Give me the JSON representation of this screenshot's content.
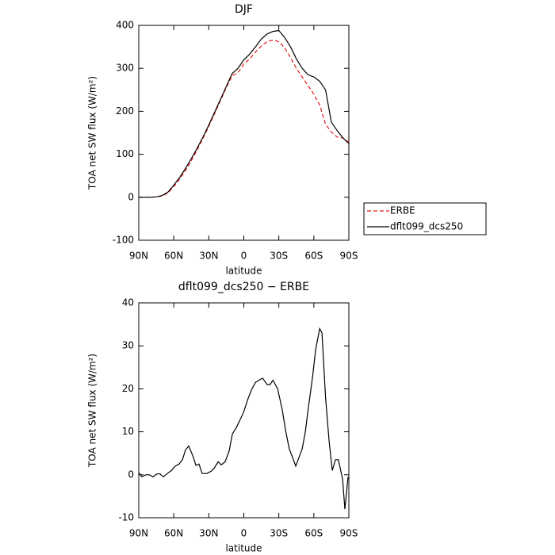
{
  "chart_data": [
    {
      "type": "line",
      "title": "DJF",
      "x_label": "latitude",
      "y_label": "TOA net SW flux (W/m²)",
      "x": [
        90,
        85,
        80,
        75,
        70,
        65,
        60,
        55,
        50,
        45,
        40,
        35,
        30,
        25,
        20,
        15,
        10,
        5,
        0,
        -5,
        -10,
        -15,
        -20,
        -25,
        -30,
        -35,
        -40,
        -45,
        -50,
        -55,
        -60,
        -65,
        -70,
        -75,
        -80,
        -85,
        -90
      ],
      "series": [
        {
          "name": "ERBE",
          "color": "#e41a1c",
          "line_style": "dashed",
          "values": [
            0,
            0,
            0,
            1,
            3,
            10,
            25,
            42,
            62,
            85,
            110,
            137,
            165,
            195,
            225,
            255,
            283,
            290,
            310,
            322,
            338,
            352,
            362,
            366,
            362,
            348,
            325,
            300,
            280,
            260,
            240,
            215,
            170,
            152,
            140,
            138,
            128
          ]
        },
        {
          "name": "dflt099_dcs250",
          "color": "#000000",
          "line_style": "solid",
          "values": [
            0,
            0,
            0,
            1,
            4,
            12,
            28,
            46,
            67,
            90,
            114,
            140,
            168,
            198,
            228,
            258,
            288,
            300,
            320,
            333,
            350,
            368,
            380,
            386,
            388,
            372,
            350,
            322,
            300,
            285,
            280,
            270,
            250,
            175,
            155,
            138,
            125
          ]
        }
      ],
      "xlim": [
        90,
        -90
      ],
      "xticks": [
        {
          "value": 90,
          "label": "90N"
        },
        {
          "value": 60,
          "label": "60N"
        },
        {
          "value": 30,
          "label": "30N"
        },
        0,
        {
          "value": -30,
          "label": "30S"
        },
        {
          "value": -60,
          "label": "60S"
        },
        {
          "value": -90,
          "label": "90S"
        }
      ],
      "ylim": [
        -100,
        400
      ],
      "yticks": [
        -100,
        0,
        100,
        200,
        300,
        400
      ],
      "legend": "outside-right"
    },
    {
      "type": "line",
      "title": "dflt099_dcs250 − ERBE",
      "x_label": "latitude",
      "y_label": "TOA net SW flux (W/m²)",
      "x": [
        90,
        87.3,
        84,
        81,
        77.8,
        74.5,
        71.7,
        69,
        65.5,
        62,
        58.8,
        55.4,
        52.6,
        49.9,
        47.2,
        43.8,
        41,
        38.4,
        35.7,
        31.6,
        28.2,
        25.5,
        22,
        19.3,
        16,
        12.6,
        9.8,
        6.4,
        3.7,
        0.3,
        -4,
        -7,
        -10,
        -13,
        -16,
        -20,
        -22.5,
        -25,
        -29,
        -33,
        -36,
        -39,
        -42.5,
        -44.5,
        -46.5,
        -50,
        -52.7,
        -55,
        -59,
        -61.5,
        -65,
        -67,
        -70,
        -73,
        -75.8,
        -78.5,
        -81,
        -84.6,
        -86.6,
        -89.3
      ],
      "series": [
        {
          "name": "dflt099_dcs250 − ERBE",
          "color": "#000000",
          "line_style": "solid",
          "values": [
            0.5,
            -0.5,
            0,
            0,
            -0.5,
            0.2,
            0.2,
            -0.5,
            0.3,
            1,
            2,
            2.5,
            3.5,
            5.8,
            6.7,
            4.5,
            2.2,
            2.5,
            0.3,
            0.3,
            0.8,
            1.5,
            3,
            2.3,
            3,
            5.5,
            9.5,
            11,
            12.5,
            14.5,
            18,
            20,
            21.5,
            22,
            22.5,
            21,
            21,
            22,
            20,
            15,
            10,
            6,
            3.5,
            2,
            3.5,
            6,
            10,
            15,
            23,
            29,
            34,
            33,
            18,
            8,
            1,
            3.5,
            3.5,
            -1,
            -8,
            -0.5
          ]
        }
      ],
      "xlim": [
        90,
        -90
      ],
      "xticks": [
        {
          "value": 90,
          "label": "90N"
        },
        {
          "value": 60,
          "label": "60N"
        },
        {
          "value": 30,
          "label": "30N"
        },
        0,
        {
          "value": -30,
          "label": "30S"
        },
        {
          "value": -60,
          "label": "60S"
        },
        {
          "value": -90,
          "label": "90S"
        }
      ],
      "ylim": [
        -10,
        40
      ],
      "yticks": [
        -10,
        0,
        10,
        20,
        30,
        40
      ]
    }
  ]
}
